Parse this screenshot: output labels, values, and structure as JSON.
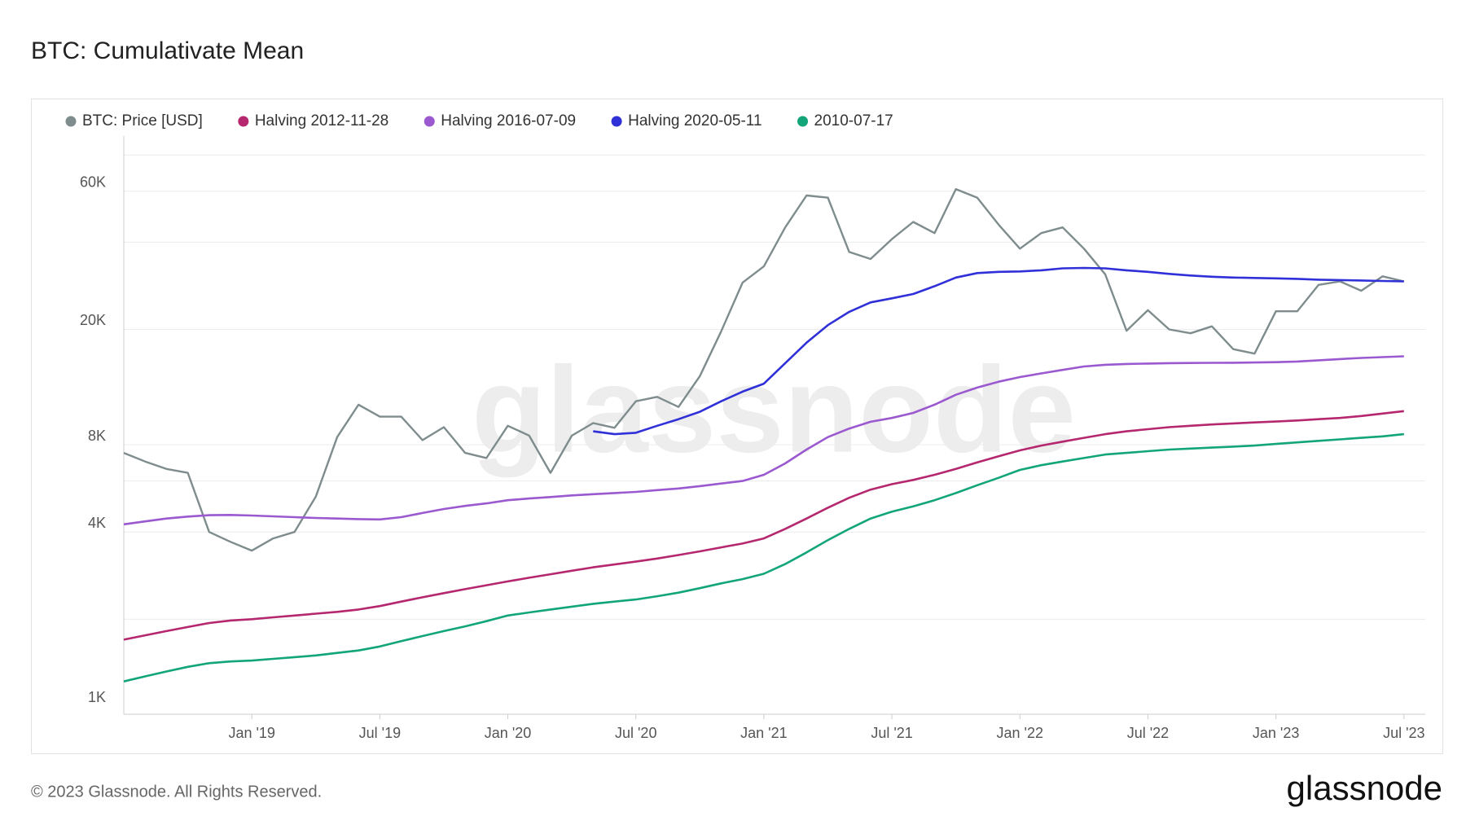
{
  "chart_data": {
    "type": "line",
    "title": "BTC: Cumulativate Mean",
    "x": [
      "2018-07",
      "2018-08",
      "2018-09",
      "2018-10",
      "2018-11",
      "2018-12",
      "2019-01",
      "2019-02",
      "2019-03",
      "2019-04",
      "2019-05",
      "2019-06",
      "2019-07",
      "2019-08",
      "2019-09",
      "2019-10",
      "2019-11",
      "2019-12",
      "2020-01",
      "2020-02",
      "2020-03",
      "2020-04",
      "2020-05",
      "2020-06",
      "2020-07",
      "2020-08",
      "2020-09",
      "2020-10",
      "2020-11",
      "2020-12",
      "2021-01",
      "2021-02",
      "2021-03",
      "2021-04",
      "2021-05",
      "2021-06",
      "2021-07",
      "2021-08",
      "2021-09",
      "2021-10",
      "2021-11",
      "2021-12",
      "2022-01",
      "2022-02",
      "2022-03",
      "2022-04",
      "2022-05",
      "2022-06",
      "2022-07",
      "2022-08",
      "2022-09",
      "2022-10",
      "2022-11",
      "2022-12",
      "2023-01",
      "2023-02",
      "2023-03",
      "2023-04",
      "2023-05",
      "2023-06",
      "2023-07"
    ],
    "series": [
      {
        "name": "BTC: Price [USD]",
        "color": "#7f8c8d",
        "values": [
          7500,
          7000,
          6600,
          6400,
          4000,
          3700,
          3450,
          3800,
          4000,
          5300,
          8500,
          11000,
          10000,
          10000,
          8300,
          9200,
          7500,
          7200,
          9300,
          8600,
          6400,
          8600,
          9500,
          9150,
          11300,
          11700,
          10800,
          13800,
          19700,
          29000,
          33000,
          45000,
          58000,
          57000,
          37000,
          35000,
          41000,
          47000,
          43000,
          61000,
          57000,
          46000,
          38000,
          43000,
          45000,
          38000,
          31000,
          19800,
          23300,
          20000,
          19400,
          20500,
          17100,
          16500,
          23100,
          23100,
          28500,
          29300,
          27200,
          30500,
          29300
        ]
      },
      {
        "name": "Halving 2012-11-28",
        "color": "#b5276e",
        "values": [
          1700,
          1760,
          1820,
          1880,
          1940,
          1980,
          2000,
          2030,
          2060,
          2090,
          2120,
          2160,
          2220,
          2300,
          2380,
          2460,
          2540,
          2620,
          2700,
          2780,
          2860,
          2940,
          3020,
          3090,
          3160,
          3240,
          3330,
          3430,
          3540,
          3650,
          3800,
          4100,
          4450,
          4850,
          5250,
          5600,
          5850,
          6050,
          6300,
          6600,
          6950,
          7300,
          7650,
          7950,
          8200,
          8450,
          8700,
          8900,
          9050,
          9200,
          9300,
          9400,
          9480,
          9550,
          9620,
          9700,
          9800,
          9900,
          10050,
          10250,
          10450
        ]
      },
      {
        "name": "Halving 2016-07-09",
        "color": "#9b59d0",
        "values": [
          4250,
          4350,
          4450,
          4520,
          4570,
          4580,
          4560,
          4530,
          4500,
          4470,
          4450,
          4430,
          4420,
          4500,
          4650,
          4800,
          4920,
          5020,
          5150,
          5220,
          5280,
          5350,
          5400,
          5450,
          5500,
          5580,
          5650,
          5760,
          5880,
          6000,
          6300,
          6900,
          7700,
          8500,
          9100,
          9600,
          9900,
          10300,
          11000,
          11900,
          12600,
          13200,
          13700,
          14100,
          14500,
          14900,
          15100,
          15200,
          15250,
          15300,
          15320,
          15340,
          15350,
          15380,
          15420,
          15500,
          15650,
          15800,
          15950,
          16050,
          16150
        ]
      },
      {
        "name": "Halving 2020-05-11",
        "color": "#3030d8",
        "values": [
          null,
          null,
          null,
          null,
          null,
          null,
          null,
          null,
          null,
          null,
          null,
          null,
          null,
          null,
          null,
          null,
          null,
          null,
          null,
          null,
          null,
          null,
          8900,
          8700,
          8800,
          9300,
          9800,
          10400,
          11300,
          12200,
          13000,
          15300,
          18000,
          20700,
          23000,
          24800,
          25600,
          26500,
          28200,
          30200,
          31300,
          31600,
          31700,
          32000,
          32500,
          32600,
          32500,
          32000,
          31600,
          31100,
          30700,
          30400,
          30200,
          30100,
          30000,
          29900,
          29700,
          29600,
          29500,
          29400,
          29300
        ]
      },
      {
        "name": "2010-07-17",
        "color": "#13a57a",
        "values": [
          1220,
          1270,
          1320,
          1370,
          1410,
          1430,
          1440,
          1460,
          1480,
          1500,
          1530,
          1560,
          1610,
          1680,
          1750,
          1820,
          1890,
          1970,
          2060,
          2110,
          2160,
          2210,
          2260,
          2300,
          2340,
          2400,
          2470,
          2560,
          2660,
          2750,
          2870,
          3100,
          3400,
          3750,
          4100,
          4450,
          4700,
          4900,
          5150,
          5450,
          5800,
          6150,
          6550,
          6800,
          7000,
          7200,
          7400,
          7500,
          7600,
          7700,
          7760,
          7820,
          7880,
          7950,
          8050,
          8150,
          8250,
          8350,
          8450,
          8550,
          8700
        ]
      }
    ],
    "xlim": [
      "2018-07",
      "2023-08"
    ],
    "xticks": [
      {
        "value": "2019-01",
        "label": "Jan '19"
      },
      {
        "value": "2019-07",
        "label": "Jul '19"
      },
      {
        "value": "2020-01",
        "label": "Jan '20"
      },
      {
        "value": "2020-07",
        "label": "Jul '20"
      },
      {
        "value": "2021-01",
        "label": "Jan '21"
      },
      {
        "value": "2021-07",
        "label": "Jul '21"
      },
      {
        "value": "2022-01",
        "label": "Jan '22"
      },
      {
        "value": "2022-07",
        "label": "Jul '22"
      },
      {
        "value": "2023-01",
        "label": "Jan '23"
      },
      {
        "value": "2023-07",
        "label": "Jul '23"
      }
    ],
    "ylim": [
      940,
      93000
    ],
    "yscale": "log",
    "yticks": [
      {
        "value": 1000,
        "label": "1K"
      },
      {
        "value": 4000,
        "label": "4K"
      },
      {
        "value": 8000,
        "label": "8K"
      },
      {
        "value": 20000,
        "label": "20K"
      },
      {
        "value": 60000,
        "label": "60K"
      }
    ],
    "ygrid": [
      2000,
      4000,
      6000,
      8000,
      20000,
      40000,
      60000,
      80000
    ],
    "grid": true,
    "legend": "top-left"
  },
  "watermark": "glassnode",
  "footer": "© 2023 Glassnode. All Rights Reserved.",
  "logo": "glassnode"
}
